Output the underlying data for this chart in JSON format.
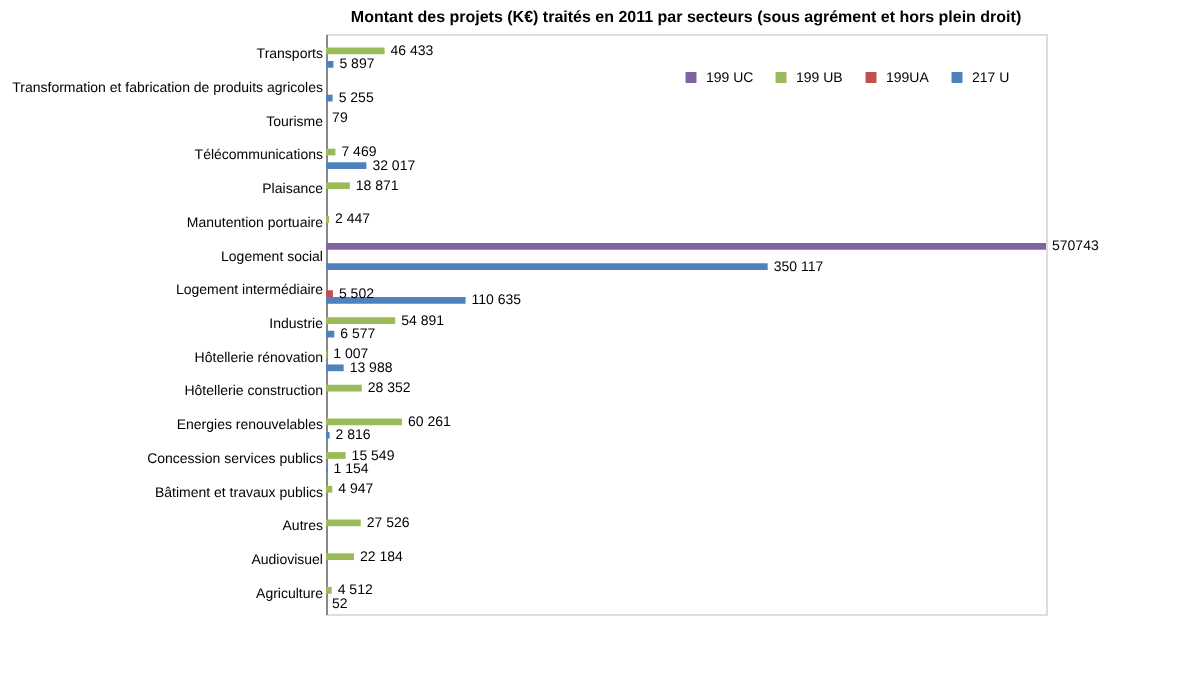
{
  "chart_data": {
    "type": "bar",
    "orientation": "horizontal",
    "title": "Montant des projets (K€) traités en 2011 par secteurs (sous agrément et hors plein droit)",
    "categories": [
      "Transports",
      "Transformation et fabrication de produits agricoles",
      "Tourisme",
      "Télécommunications",
      "Plaisance",
      "Manutention portuaire",
      "Logement social",
      "Logement intermédiaire",
      "Industrie",
      "Hôtellerie rénovation",
      "Hôtellerie construction",
      "Energies renouvelables",
      "Concession services publics",
      "Bâtiment et travaux publics",
      "Autres",
      "Audiovisuel",
      "Agriculture"
    ],
    "series": [
      {
        "name": "199 UC",
        "color": "#8064a2",
        "values": [
          null,
          null,
          null,
          null,
          null,
          null,
          570743,
          null,
          null,
          null,
          null,
          null,
          null,
          null,
          null,
          null,
          null
        ],
        "value_labels": [
          null,
          null,
          null,
          null,
          null,
          null,
          "570743",
          null,
          null,
          null,
          null,
          null,
          null,
          null,
          null,
          null,
          null
        ]
      },
      {
        "name": "199 UB",
        "color": "#9bbb59",
        "values": [
          46433,
          null,
          79,
          7469,
          18871,
          2447,
          null,
          null,
          54891,
          1007,
          28352,
          60261,
          15549,
          4947,
          27526,
          22184,
          4512
        ],
        "value_labels": [
          "46 433",
          null,
          "79",
          "7 469",
          "18 871",
          "2 447",
          null,
          null,
          "54 891",
          "1 007",
          "28 352",
          "60 261",
          "15 549",
          "4 947",
          "27 526",
          "22 184",
          "4 512"
        ]
      },
      {
        "name": "199UA",
        "color": "#c0504d",
        "values": [
          null,
          null,
          null,
          null,
          null,
          null,
          null,
          5502,
          null,
          null,
          null,
          null,
          null,
          null,
          null,
          null,
          null
        ],
        "value_labels": [
          null,
          null,
          null,
          null,
          null,
          null,
          null,
          "5 502",
          null,
          null,
          null,
          null,
          null,
          null,
          null,
          null,
          null
        ]
      },
      {
        "name": "217 U",
        "color": "#4f81bd",
        "values": [
          5897,
          5255,
          null,
          32017,
          null,
          null,
          350117,
          110635,
          6577,
          13988,
          null,
          2816,
          1154,
          null,
          null,
          null,
          52
        ],
        "value_labels": [
          "5 897",
          "5 255",
          null,
          "32 017",
          null,
          null,
          "350 117",
          "110 635",
          "6 577",
          "13 988",
          null,
          "2 816",
          "1 154",
          null,
          null,
          null,
          "52"
        ]
      }
    ],
    "legend": "top right",
    "tick_labels": "y"
  }
}
